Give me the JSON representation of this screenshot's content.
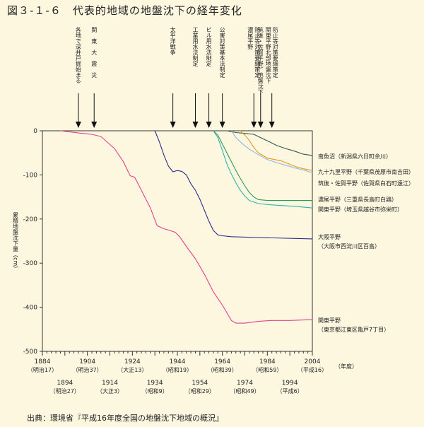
{
  "title": "図３-１-６　代表的地域の地盤沈下の経年変化",
  "source": "出典：環境省『平成16年度全国の地盤沈下地域の概況』",
  "chart_data": {
    "type": "line",
    "xlabel": "（年度）",
    "ylabel": "累積地盤沈下量（cm）",
    "xlim": [
      1884,
      2004
    ],
    "ylim": [
      -500,
      0
    ],
    "yticks": [
      0,
      -100,
      -200,
      -300,
      -400,
      -500
    ],
    "xticks_top": [
      {
        "year": 1884,
        "era": "（明治17）"
      },
      {
        "year": 1904,
        "era": "（明治37）"
      },
      {
        "year": 1924,
        "era": "（大正13）"
      },
      {
        "year": 1944,
        "era": "（昭和19）"
      },
      {
        "year": 1964,
        "era": "（昭和39）"
      },
      {
        "year": 1984,
        "era": "（昭和59）"
      },
      {
        "year": 2004,
        "era": "（平成16）"
      }
    ],
    "xticks_bottom": [
      {
        "year": 1894,
        "era": "（明治27）"
      },
      {
        "year": 1914,
        "era": "（大正3）"
      },
      {
        "year": 1934,
        "era": "（昭和9）"
      },
      {
        "year": 1954,
        "era": "（昭和29）"
      },
      {
        "year": 1974,
        "era": "（昭和49）"
      },
      {
        "year": 1994,
        "era": "（平成6）"
      }
    ],
    "events": [
      {
        "year": 1900,
        "label": "各地で深井戸掘始まる"
      },
      {
        "year": 1907,
        "label": "関　東　大　震　災"
      },
      {
        "year": 1942,
        "label": "太平洋戦争"
      },
      {
        "year": 1952,
        "label": "工業用水法制定"
      },
      {
        "year": 1958,
        "label": "ビル用水法制定"
      },
      {
        "year": 1964,
        "label": "公害対策基本法制定"
      },
      {
        "year": 1978,
        "label": "濃尾平野 防止等対策要綱策定"
      },
      {
        "year": 1981,
        "label": "筑後・佐賀平野）地盤沈下"
      },
      {
        "year": 1986,
        "label": "関東平野北部地盤沈下 防止等対策要綱策定"
      }
    ],
    "series": [
      {
        "name": "南魚沼（新潟県六日町余川）",
        "color": "#2f5a4a",
        "points": [
          [
            1966,
            0
          ],
          [
            1970,
            -4
          ],
          [
            1974,
            -6
          ],
          [
            1978,
            -8
          ],
          [
            1982,
            -18
          ],
          [
            1985,
            -25
          ],
          [
            1988,
            -33
          ],
          [
            1992,
            -40
          ],
          [
            1996,
            -46
          ],
          [
            2000,
            -53
          ],
          [
            2004,
            -56
          ]
        ]
      },
      {
        "name": "九十九里平野（千葉県茂原市南吉田）",
        "color": "#8cb8e0",
        "points": [
          [
            1968,
            0
          ],
          [
            1970,
            -15
          ],
          [
            1973,
            -30
          ],
          [
            1976,
            -42
          ],
          [
            1980,
            -54
          ],
          [
            1984,
            -65
          ],
          [
            1988,
            -72
          ],
          [
            1992,
            -78
          ],
          [
            1996,
            -84
          ],
          [
            2000,
            -89
          ],
          [
            2004,
            -95
          ]
        ]
      },
      {
        "name": "筑後・佐賀平野（佐賀県白石町遠江）",
        "color": "#e8951a",
        "points": [
          [
            1972,
            0
          ],
          [
            1974,
            -10
          ],
          [
            1976,
            -22
          ],
          [
            1978,
            -38
          ],
          [
            1980,
            -50
          ],
          [
            1982,
            -56
          ],
          [
            1984,
            -62
          ],
          [
            1987,
            -65
          ],
          [
            1990,
            -68
          ],
          [
            1994,
            -76
          ],
          [
            1997,
            -82
          ],
          [
            2000,
            -86
          ],
          [
            2004,
            -90
          ]
        ]
      },
      {
        "name": "濃尾平野（三重県長島町白鶏）",
        "color": "#2e9a5a",
        "points": [
          [
            1960,
            0
          ],
          [
            1962,
            -10
          ],
          [
            1964,
            -30
          ],
          [
            1967,
            -60
          ],
          [
            1970,
            -90
          ],
          [
            1972,
            -108
          ],
          [
            1974,
            -125
          ],
          [
            1976,
            -140
          ],
          [
            1978,
            -150
          ],
          [
            1980,
            -156
          ],
          [
            1984,
            -158
          ],
          [
            1990,
            -158
          ],
          [
            1996,
            -158
          ],
          [
            2004,
            -158
          ]
        ]
      },
      {
        "name": "関東平野（埼玉県越谷市弥栄町）",
        "color": "#2ab3b0",
        "points": [
          [
            1960,
            0
          ],
          [
            1962,
            -15
          ],
          [
            1964,
            -45
          ],
          [
            1966,
            -75
          ],
          [
            1968,
            -98
          ],
          [
            1970,
            -118
          ],
          [
            1972,
            -135
          ],
          [
            1974,
            -148
          ],
          [
            1976,
            -158
          ],
          [
            1980,
            -165
          ],
          [
            1986,
            -168
          ],
          [
            1992,
            -170
          ],
          [
            1998,
            -172
          ],
          [
            2004,
            -175
          ]
        ]
      },
      {
        "name": "大阪平野（大阪市西淀川区百島）",
        "color": "#2a2a8a",
        "points": [
          [
            1934,
            0
          ],
          [
            1936,
            -25
          ],
          [
            1938,
            -55
          ],
          [
            1940,
            -80
          ],
          [
            1942,
            -93
          ],
          [
            1944,
            -90
          ],
          [
            1946,
            -92
          ],
          [
            1948,
            -100
          ],
          [
            1950,
            -120
          ],
          [
            1952,
            -135
          ],
          [
            1954,
            -155
          ],
          [
            1956,
            -180
          ],
          [
            1958,
            -205
          ],
          [
            1960,
            -226
          ],
          [
            1962,
            -236
          ],
          [
            1964,
            -238
          ],
          [
            1968,
            -240
          ],
          [
            1980,
            -242
          ],
          [
            2004,
            -245
          ]
        ]
      },
      {
        "name": "関東平野（東京都江東区亀戸7丁目）",
        "color": "#e1418e",
        "points": [
          [
            1892,
            0
          ],
          [
            1900,
            -5
          ],
          [
            1906,
            -8
          ],
          [
            1910,
            -13
          ],
          [
            1916,
            -40
          ],
          [
            1920,
            -70
          ],
          [
            1923,
            -102
          ],
          [
            1925,
            -105
          ],
          [
            1928,
            -135
          ],
          [
            1932,
            -175
          ],
          [
            1935,
            -215
          ],
          [
            1938,
            -222
          ],
          [
            1940,
            -225
          ],
          [
            1943,
            -230
          ],
          [
            1945,
            -240
          ],
          [
            1948,
            -262
          ],
          [
            1952,
            -290
          ],
          [
            1956,
            -325
          ],
          [
            1960,
            -365
          ],
          [
            1964,
            -395
          ],
          [
            1968,
            -430
          ],
          [
            1970,
            -436
          ],
          [
            1974,
            -436
          ],
          [
            1980,
            -432
          ],
          [
            1986,
            -430
          ],
          [
            1994,
            -430
          ],
          [
            2004,
            -428
          ]
        ]
      }
    ]
  }
}
